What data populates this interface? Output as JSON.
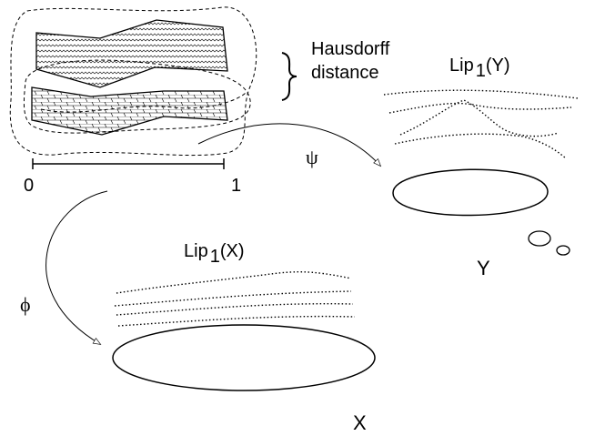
{
  "labels": {
    "hausdorff_line1": "Hausdorff",
    "hausdorff_line2": "distance",
    "lip_y_base": "Lip",
    "lip_y_sub": "1",
    "lip_y_arg": "(Y)",
    "lip_x_base": "Lip",
    "lip_x_sub": "1",
    "lip_x_arg": "(X)",
    "psi": "ψ",
    "phi": "ϕ",
    "space_y": "Y",
    "space_x": "X",
    "interval_start": "0",
    "interval_end": "1"
  }
}
